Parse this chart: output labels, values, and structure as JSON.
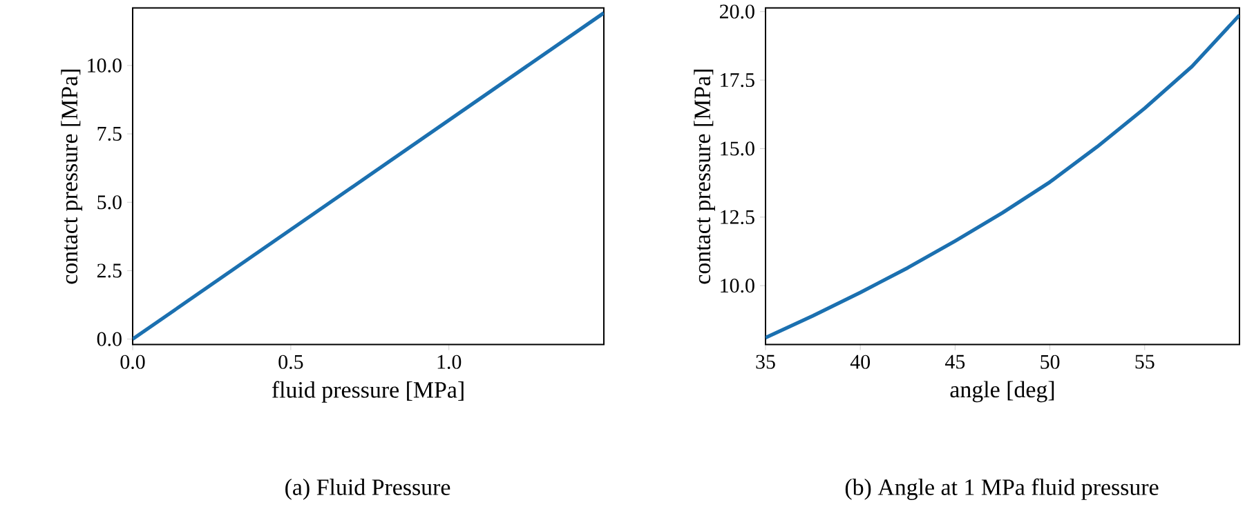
{
  "chart_data": [
    {
      "type": "line",
      "title": "(a) Fluid Pressure",
      "xlabel": "fluid pressure [MPa]",
      "ylabel": "contact pressure [MPa]",
      "x": [
        0,
        1.49
      ],
      "series": [
        {
          "color": "#1b70b0",
          "values": [
            0,
            11.92
          ]
        }
      ],
      "xlim": [
        0,
        1.49
      ],
      "ylim": [
        -0.2,
        12.1
      ],
      "xticks": [
        {
          "value": 0,
          "label": "0.0"
        },
        {
          "value": 0.5,
          "label": "0.5"
        },
        {
          "value": 1,
          "label": "1.0"
        }
      ],
      "yticks": [
        {
          "value": 0,
          "label": "0.0"
        },
        {
          "value": 2.5,
          "label": "2.5"
        },
        {
          "value": 5,
          "label": "5.0"
        },
        {
          "value": 7.5,
          "label": "7.5"
        },
        {
          "value": 10,
          "label": "10.0"
        }
      ]
    },
    {
      "type": "line",
      "title": "(b) Angle at 1 MPa fluid pressure",
      "xlabel": "angle [deg]",
      "ylabel": "contact pressure [MPa]",
      "x": [
        35,
        37.5,
        40,
        42.5,
        45,
        47.5,
        50,
        52.5,
        55,
        57.5,
        60
      ],
      "series": [
        {
          "color": "#1b70b0",
          "values": [
            8.1,
            8.9,
            9.75,
            10.65,
            11.63,
            12.66,
            13.78,
            15.07,
            16.47,
            18.0,
            19.87
          ]
        }
      ],
      "xlim": [
        35,
        60
      ],
      "ylim": [
        7.85,
        20.13
      ],
      "xticks": [
        35,
        40,
        45,
        50,
        55
      ],
      "yticks": [
        {
          "value": 10,
          "label": "10.0"
        },
        {
          "value": 12.5,
          "label": "12.5"
        },
        {
          "value": 15,
          "label": "15.0"
        },
        {
          "value": 17.5,
          "label": "17.5"
        },
        {
          "value": 20,
          "label": "20.0"
        }
      ]
    }
  ]
}
